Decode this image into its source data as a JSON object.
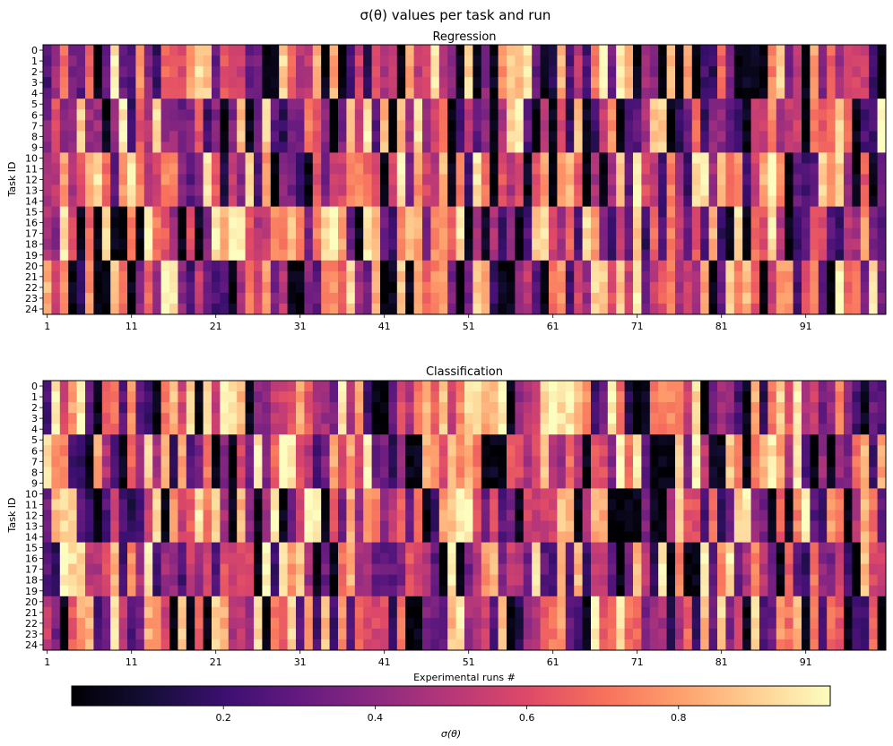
{
  "chart_data": {
    "suptitle": "σ(θ) values per task and run",
    "panels": [
      {
        "type": "heatmap",
        "title": "Regression",
        "ylabel": "Task ID",
        "xlabel": "",
        "rows": 25,
        "cols": 100,
        "row_groups_of": 5,
        "x_ticks": [
          1,
          11,
          21,
          31,
          41,
          51,
          61,
          71,
          81,
          91
        ],
        "y_ticks": [
          0,
          1,
          2,
          3,
          4,
          5,
          6,
          7,
          8,
          9,
          10,
          11,
          12,
          13,
          14,
          15,
          16,
          17,
          18,
          19,
          20,
          21,
          22,
          23,
          24
        ],
        "seed": 7
      },
      {
        "type": "heatmap",
        "title": "Classification",
        "ylabel": "Task ID",
        "xlabel": "Experimental runs #",
        "rows": 25,
        "cols": 100,
        "row_groups_of": 5,
        "x_ticks": [
          1,
          11,
          21,
          31,
          41,
          51,
          61,
          71,
          81,
          91
        ],
        "y_ticks": [
          0,
          1,
          2,
          3,
          4,
          5,
          6,
          7,
          8,
          9,
          10,
          11,
          12,
          13,
          14,
          15,
          16,
          17,
          18,
          19,
          20,
          21,
          22,
          23,
          24
        ],
        "seed": 13
      }
    ],
    "colorbar": {
      "colormap": "magma",
      "range": [
        0.0,
        1.0
      ],
      "ticks": [
        0.2,
        0.4,
        0.6,
        0.8
      ],
      "tick_labels": [
        "0.2",
        "0.4",
        "0.6",
        "0.8"
      ],
      "label": "σ(θ)",
      "orientation": "horizontal"
    }
  }
}
